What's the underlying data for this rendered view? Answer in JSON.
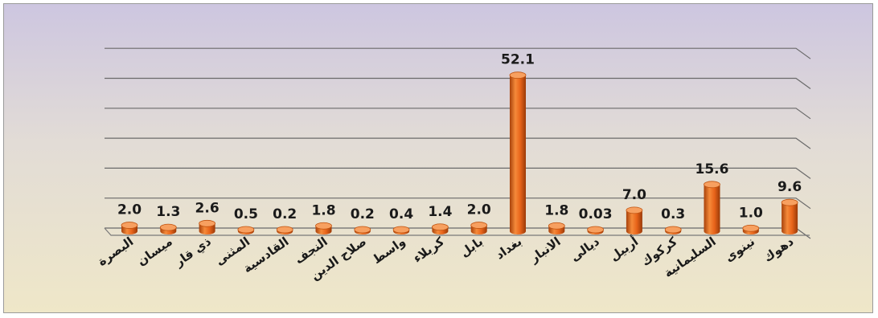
{
  "chart_data": {
    "type": "bar",
    "title": "",
    "xlabel": "",
    "ylabel": "",
    "ylim": [
      0,
      60
    ],
    "grid": true,
    "bar_color": "#e8641a",
    "categories": [
      "البصرة",
      "ميسان",
      "ذي قار",
      "المثنى",
      "القادسية",
      "النجف",
      "صلاح الدين",
      "واسط",
      "كربلاء",
      "بابل",
      "بغداد",
      "الانبار",
      "ديالى",
      "أربيل",
      "كركوك",
      "السليمانية",
      "نينوى",
      "دهوك"
    ],
    "values": [
      2.0,
      1.3,
      2.6,
      0.5,
      0.2,
      1.8,
      0.2,
      0.4,
      1.4,
      2.0,
      52.1,
      1.8,
      0.03,
      7.0,
      0.3,
      15.6,
      1.0,
      9.6
    ],
    "value_labels": [
      "2.0",
      "1.3",
      "2.6",
      "0.5",
      "0.2",
      "1.8",
      "0.2",
      "0.4",
      "1.4",
      "2.0",
      "52.1",
      "1.8",
      "0.03",
      "7.0",
      "0.3",
      "15.6",
      "1.0",
      "9.6"
    ]
  }
}
